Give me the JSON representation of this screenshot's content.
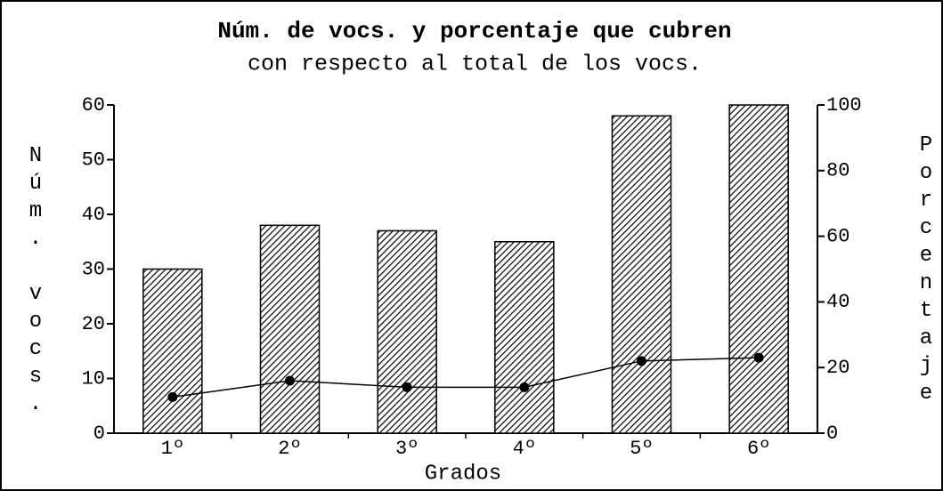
{
  "chart_data": {
    "type": "bar",
    "title": "Núm. de vocs. y porcentaje que cubren",
    "subtitle": "con respecto al total de los vocs.",
    "x_label": "Grados",
    "y_label": "Núm. vocs.",
    "y2_label": "Porcentaje",
    "categories": [
      "1º",
      "2º",
      "3º",
      "4º",
      "5º",
      "6º"
    ],
    "series": [
      {
        "type": "bar",
        "color": "#000000",
        "values": [
          30,
          38,
          37,
          35,
          58,
          60
        ]
      },
      {
        "type": "line",
        "axis": "y2",
        "color": "#000000",
        "values": [
          11,
          16,
          14,
          14,
          22,
          23
        ]
      }
    ],
    "ylim": [
      0,
      60
    ],
    "yticks": [
      0,
      10,
      20,
      30,
      40,
      50,
      60
    ],
    "y2lim": [
      0,
      100
    ],
    "y2ticks": [
      0,
      20,
      40,
      60,
      80,
      100
    ]
  }
}
